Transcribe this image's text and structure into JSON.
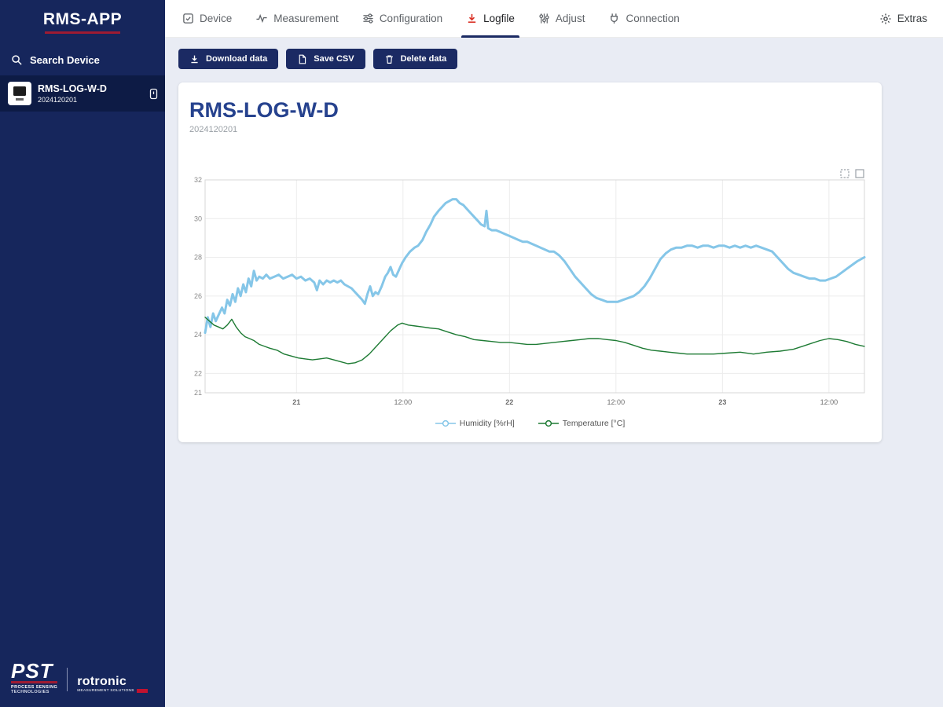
{
  "sidebar": {
    "app_title": "RMS-APP",
    "search_label": "Search Device",
    "device": {
      "name": "RMS-LOG-W-D",
      "id": "2024120201"
    },
    "footer": {
      "pst": "PST",
      "pst_sub1": "PROCESS SENSING",
      "pst_sub2": "TECHNOLOGIES",
      "rotronic": "rotronic",
      "rotronic_sub": "MEASUREMENT SOLUTIONS"
    },
    "colors": {
      "background": "#16265c",
      "selected_item": "#0d1b45",
      "accent_red": "#9e1b32"
    }
  },
  "nav": {
    "tabs": [
      {
        "label": "Device",
        "icon": "device-icon"
      },
      {
        "label": "Measurement",
        "icon": "measurement-icon"
      },
      {
        "label": "Configuration",
        "icon": "configuration-icon"
      },
      {
        "label": "Logfile",
        "icon": "logfile-download-icon"
      },
      {
        "label": "Adjust",
        "icon": "adjust-icon"
      },
      {
        "label": "Connection",
        "icon": "connection-icon"
      }
    ],
    "active_tab": "Logfile",
    "extras_label": "Extras",
    "colors": {
      "active_underline": "#1b2a63",
      "logfile_icon_red": "#d93025"
    }
  },
  "toolbar": {
    "buttons": [
      {
        "label": "Download data",
        "icon": "download-icon"
      },
      {
        "label": "Save CSV",
        "icon": "file-icon"
      },
      {
        "label": "Delete data",
        "icon": "trash-icon"
      }
    ],
    "button_color": "#1b2a63"
  },
  "card": {
    "title": "RMS-LOG-W-D",
    "subtitle": "2024120201"
  },
  "chart_data": {
    "type": "line",
    "title": "",
    "xlabel": "",
    "ylabel": "",
    "x_unit": "hours since day 20 00:00",
    "xlim": [
      13.7,
      88
    ],
    "ylim": [
      21,
      32
    ],
    "grid": true,
    "legend_position": "bottom",
    "y_ticks": [
      21,
      22,
      24,
      26,
      28,
      30,
      32
    ],
    "x_ticks": [
      {
        "x": 24,
        "label": "21",
        "major": true
      },
      {
        "x": 36,
        "label": "12:00",
        "major": false
      },
      {
        "x": 48,
        "label": "22",
        "major": true
      },
      {
        "x": 60,
        "label": "12:00",
        "major": false
      },
      {
        "x": 72,
        "label": "23",
        "major": true
      },
      {
        "x": 84,
        "label": "12:00",
        "major": false
      }
    ],
    "series": [
      {
        "name": "Humidity [%rH]",
        "color": "#85c6e8",
        "width": 3,
        "points": [
          [
            13.7,
            24.1
          ],
          [
            14.0,
            24.9
          ],
          [
            14.3,
            24.4
          ],
          [
            14.6,
            25.1
          ],
          [
            14.9,
            24.7
          ],
          [
            15.2,
            25.0
          ],
          [
            15.6,
            25.4
          ],
          [
            15.9,
            25.1
          ],
          [
            16.2,
            25.8
          ],
          [
            16.5,
            25.5
          ],
          [
            16.8,
            26.1
          ],
          [
            17.1,
            25.7
          ],
          [
            17.4,
            26.4
          ],
          [
            17.7,
            26.0
          ],
          [
            18.0,
            26.6
          ],
          [
            18.3,
            26.2
          ],
          [
            18.6,
            26.9
          ],
          [
            18.9,
            26.5
          ],
          [
            19.2,
            27.3
          ],
          [
            19.5,
            26.8
          ],
          [
            19.8,
            27.0
          ],
          [
            20.2,
            26.9
          ],
          [
            20.6,
            27.1
          ],
          [
            21.0,
            26.9
          ],
          [
            21.5,
            27.0
          ],
          [
            22.0,
            27.1
          ],
          [
            22.5,
            26.9
          ],
          [
            23.0,
            27.0
          ],
          [
            23.5,
            27.1
          ],
          [
            24.0,
            26.9
          ],
          [
            24.5,
            27.0
          ],
          [
            25.0,
            26.8
          ],
          [
            25.5,
            26.9
          ],
          [
            26.0,
            26.7
          ],
          [
            26.3,
            26.3
          ],
          [
            26.6,
            26.8
          ],
          [
            27.0,
            26.6
          ],
          [
            27.4,
            26.8
          ],
          [
            27.8,
            26.7
          ],
          [
            28.2,
            26.8
          ],
          [
            28.6,
            26.7
          ],
          [
            29.0,
            26.8
          ],
          [
            29.4,
            26.6
          ],
          [
            29.8,
            26.5
          ],
          [
            30.2,
            26.4
          ],
          [
            30.6,
            26.2
          ],
          [
            31.0,
            26.0
          ],
          [
            31.4,
            25.8
          ],
          [
            31.7,
            25.6
          ],
          [
            32.0,
            26.1
          ],
          [
            32.3,
            26.5
          ],
          [
            32.6,
            26.0
          ],
          [
            32.9,
            26.2
          ],
          [
            33.2,
            26.1
          ],
          [
            33.6,
            26.5
          ],
          [
            34.0,
            27.0
          ],
          [
            34.3,
            27.2
          ],
          [
            34.6,
            27.5
          ],
          [
            34.9,
            27.1
          ],
          [
            35.2,
            27.0
          ],
          [
            35.6,
            27.4
          ],
          [
            35.9,
            27.7
          ],
          [
            36.3,
            28.0
          ],
          [
            36.8,
            28.3
          ],
          [
            37.3,
            28.5
          ],
          [
            37.7,
            28.6
          ],
          [
            38.2,
            28.9
          ],
          [
            38.6,
            29.3
          ],
          [
            39.1,
            29.7
          ],
          [
            39.5,
            30.1
          ],
          [
            40.0,
            30.4
          ],
          [
            40.4,
            30.6
          ],
          [
            40.8,
            30.8
          ],
          [
            41.2,
            30.9
          ],
          [
            41.6,
            31.0
          ],
          [
            42.0,
            31.0
          ],
          [
            42.4,
            30.8
          ],
          [
            42.8,
            30.7
          ],
          [
            43.2,
            30.5
          ],
          [
            43.6,
            30.3
          ],
          [
            44.0,
            30.1
          ],
          [
            44.4,
            29.9
          ],
          [
            44.8,
            29.7
          ],
          [
            45.2,
            29.6
          ],
          [
            45.4,
            30.4
          ],
          [
            45.6,
            29.5
          ],
          [
            46.0,
            29.4
          ],
          [
            46.5,
            29.4
          ],
          [
            47.0,
            29.3
          ],
          [
            47.5,
            29.2
          ],
          [
            48.0,
            29.1
          ],
          [
            48.5,
            29.0
          ],
          [
            49.0,
            28.9
          ],
          [
            49.5,
            28.8
          ],
          [
            50.0,
            28.8
          ],
          [
            50.5,
            28.7
          ],
          [
            51.0,
            28.6
          ],
          [
            51.5,
            28.5
          ],
          [
            52.0,
            28.4
          ],
          [
            52.5,
            28.3
          ],
          [
            53.0,
            28.3
          ],
          [
            53.6,
            28.1
          ],
          [
            54.2,
            27.8
          ],
          [
            54.8,
            27.4
          ],
          [
            55.4,
            27.0
          ],
          [
            56.0,
            26.7
          ],
          [
            56.6,
            26.4
          ],
          [
            57.2,
            26.1
          ],
          [
            57.8,
            25.9
          ],
          [
            58.4,
            25.8
          ],
          [
            59.0,
            25.7
          ],
          [
            59.6,
            25.7
          ],
          [
            60.2,
            25.7
          ],
          [
            60.8,
            25.8
          ],
          [
            61.4,
            25.9
          ],
          [
            62.0,
            26.0
          ],
          [
            62.6,
            26.2
          ],
          [
            63.2,
            26.5
          ],
          [
            63.8,
            26.9
          ],
          [
            64.4,
            27.4
          ],
          [
            65.0,
            27.9
          ],
          [
            65.6,
            28.2
          ],
          [
            66.2,
            28.4
          ],
          [
            66.8,
            28.5
          ],
          [
            67.4,
            28.5
          ],
          [
            68.0,
            28.6
          ],
          [
            68.6,
            28.6
          ],
          [
            69.2,
            28.5
          ],
          [
            69.8,
            28.6
          ],
          [
            70.4,
            28.6
          ],
          [
            71.0,
            28.5
          ],
          [
            71.6,
            28.6
          ],
          [
            72.2,
            28.6
          ],
          [
            72.8,
            28.5
          ],
          [
            73.4,
            28.6
          ],
          [
            74.0,
            28.5
          ],
          [
            74.6,
            28.6
          ],
          [
            75.2,
            28.5
          ],
          [
            75.8,
            28.6
          ],
          [
            76.4,
            28.5
          ],
          [
            77.0,
            28.4
          ],
          [
            77.6,
            28.3
          ],
          [
            78.2,
            28.0
          ],
          [
            78.8,
            27.7
          ],
          [
            79.4,
            27.4
          ],
          [
            80.0,
            27.2
          ],
          [
            80.6,
            27.1
          ],
          [
            81.2,
            27.0
          ],
          [
            81.8,
            26.9
          ],
          [
            82.4,
            26.9
          ],
          [
            83.0,
            26.8
          ],
          [
            83.6,
            26.8
          ],
          [
            84.2,
            26.9
          ],
          [
            84.8,
            27.0
          ],
          [
            85.4,
            27.2
          ],
          [
            86.0,
            27.4
          ],
          [
            86.6,
            27.6
          ],
          [
            87.2,
            27.8
          ],
          [
            88.0,
            28.0
          ]
        ]
      },
      {
        "name": "Temperature [°C]",
        "color": "#1e7b34",
        "width": 1.4,
        "points": [
          [
            13.7,
            24.9
          ],
          [
            14.2,
            24.7
          ],
          [
            14.7,
            24.5
          ],
          [
            15.2,
            24.4
          ],
          [
            15.7,
            24.3
          ],
          [
            16.2,
            24.5
          ],
          [
            16.7,
            24.8
          ],
          [
            17.2,
            24.4
          ],
          [
            17.7,
            24.1
          ],
          [
            18.2,
            23.9
          ],
          [
            18.7,
            23.8
          ],
          [
            19.2,
            23.7
          ],
          [
            19.8,
            23.5
          ],
          [
            20.4,
            23.4
          ],
          [
            21.0,
            23.3
          ],
          [
            21.8,
            23.2
          ],
          [
            22.6,
            23.0
          ],
          [
            23.4,
            22.9
          ],
          [
            24.2,
            22.8
          ],
          [
            25.0,
            22.75
          ],
          [
            25.8,
            22.7
          ],
          [
            26.6,
            22.75
          ],
          [
            27.4,
            22.8
          ],
          [
            28.2,
            22.7
          ],
          [
            29.0,
            22.6
          ],
          [
            29.8,
            22.5
          ],
          [
            30.6,
            22.55
          ],
          [
            31.4,
            22.7
          ],
          [
            32.2,
            23.0
          ],
          [
            33.0,
            23.4
          ],
          [
            33.8,
            23.8
          ],
          [
            34.6,
            24.2
          ],
          [
            35.4,
            24.5
          ],
          [
            35.9,
            24.6
          ],
          [
            36.6,
            24.5
          ],
          [
            37.4,
            24.45
          ],
          [
            38.2,
            24.4
          ],
          [
            39.0,
            24.35
          ],
          [
            40.0,
            24.3
          ],
          [
            41.0,
            24.15
          ],
          [
            42.0,
            24.0
          ],
          [
            43.0,
            23.9
          ],
          [
            44.0,
            23.75
          ],
          [
            45.0,
            23.7
          ],
          [
            46.0,
            23.65
          ],
          [
            47.0,
            23.6
          ],
          [
            48.0,
            23.6
          ],
          [
            49.0,
            23.55
          ],
          [
            50.0,
            23.5
          ],
          [
            51.0,
            23.5
          ],
          [
            52.0,
            23.55
          ],
          [
            53.0,
            23.6
          ],
          [
            54.0,
            23.65
          ],
          [
            55.0,
            23.7
          ],
          [
            56.0,
            23.75
          ],
          [
            57.0,
            23.8
          ],
          [
            58.0,
            23.8
          ],
          [
            59.0,
            23.75
          ],
          [
            60.0,
            23.7
          ],
          [
            61.0,
            23.6
          ],
          [
            62.0,
            23.45
          ],
          [
            63.0,
            23.3
          ],
          [
            64.0,
            23.2
          ],
          [
            65.0,
            23.15
          ],
          [
            66.0,
            23.1
          ],
          [
            67.0,
            23.05
          ],
          [
            68.0,
            23.0
          ],
          [
            69.5,
            23.0
          ],
          [
            71.0,
            23.0
          ],
          [
            72.5,
            23.05
          ],
          [
            74.0,
            23.1
          ],
          [
            75.5,
            23.0
          ],
          [
            77.0,
            23.1
          ],
          [
            78.5,
            23.15
          ],
          [
            80.0,
            23.25
          ],
          [
            81.0,
            23.4
          ],
          [
            82.0,
            23.55
          ],
          [
            83.0,
            23.7
          ],
          [
            84.0,
            23.8
          ],
          [
            85.0,
            23.75
          ],
          [
            86.0,
            23.65
          ],
          [
            87.0,
            23.5
          ],
          [
            88.0,
            23.4
          ]
        ]
      }
    ]
  }
}
